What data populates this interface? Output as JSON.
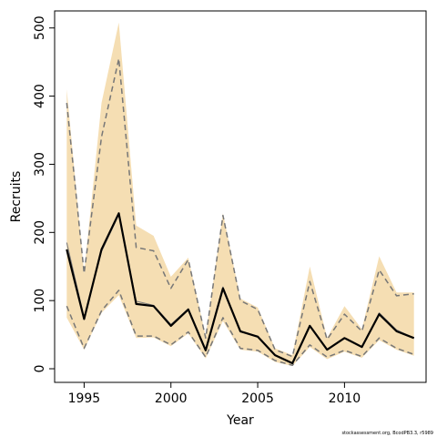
{
  "chart_data": {
    "type": "area",
    "xlabel": "Year",
    "ylabel": "Recruits",
    "xlim": [
      1993.3,
      2014.7
    ],
    "ylim": [
      -20,
      525
    ],
    "x_ticks": [
      1995,
      2000,
      2005,
      2010
    ],
    "y_ticks": [
      0,
      100,
      200,
      300,
      400,
      500
    ],
    "grid": false,
    "legend": "none",
    "footnote": "stockassessment.org, BcodPB3.3, r5989",
    "colors": {
      "band": "#f5deb3",
      "median": "#000000",
      "estimate": "#7a7a7a",
      "bounds": "#777777"
    },
    "x": [
      1994,
      1995,
      1996,
      1997,
      1998,
      1999,
      2000,
      2001,
      2002,
      2003,
      2004,
      2005,
      2006,
      2007,
      2008,
      2009,
      2010,
      2011,
      2012,
      2013,
      2014
    ],
    "band": {
      "lower": [
        75,
        28,
        82,
        108,
        45,
        46,
        33,
        52,
        15,
        70,
        28,
        25,
        10,
        4,
        32,
        14,
        25,
        16,
        42,
        28,
        19
      ],
      "upper": [
        410,
        140,
        390,
        508,
        210,
        195,
        135,
        163,
        48,
        228,
        103,
        90,
        30,
        20,
        150,
        45,
        92,
        58,
        165,
        112,
        112
      ]
    },
    "series": [
      {
        "values": [
          175,
          73,
          175,
          228,
          95,
          92,
          63,
          87,
          27,
          118,
          55,
          47,
          20,
          8,
          63,
          28,
          45,
          32,
          80,
          55,
          45
        ]
      },
      {
        "values": [
          185,
          75,
          172,
          226,
          99,
          93,
          65,
          88,
          27,
          120,
          54,
          48,
          20,
          8,
          63,
          28,
          45,
          32,
          82,
          57,
          45
        ]
      },
      {
        "values": [
          92,
          30,
          85,
          115,
          48,
          48,
          35,
          54,
          17,
          75,
          30,
          27,
          12,
          5,
          35,
          17,
          27,
          18,
          45,
          30,
          21
        ]
      },
      {
        "values": [
          390,
          140,
          340,
          455,
          178,
          173,
          118,
          160,
          45,
          225,
          100,
          87,
          28,
          18,
          128,
          43,
          80,
          55,
          145,
          107,
          110
        ]
      }
    ]
  }
}
